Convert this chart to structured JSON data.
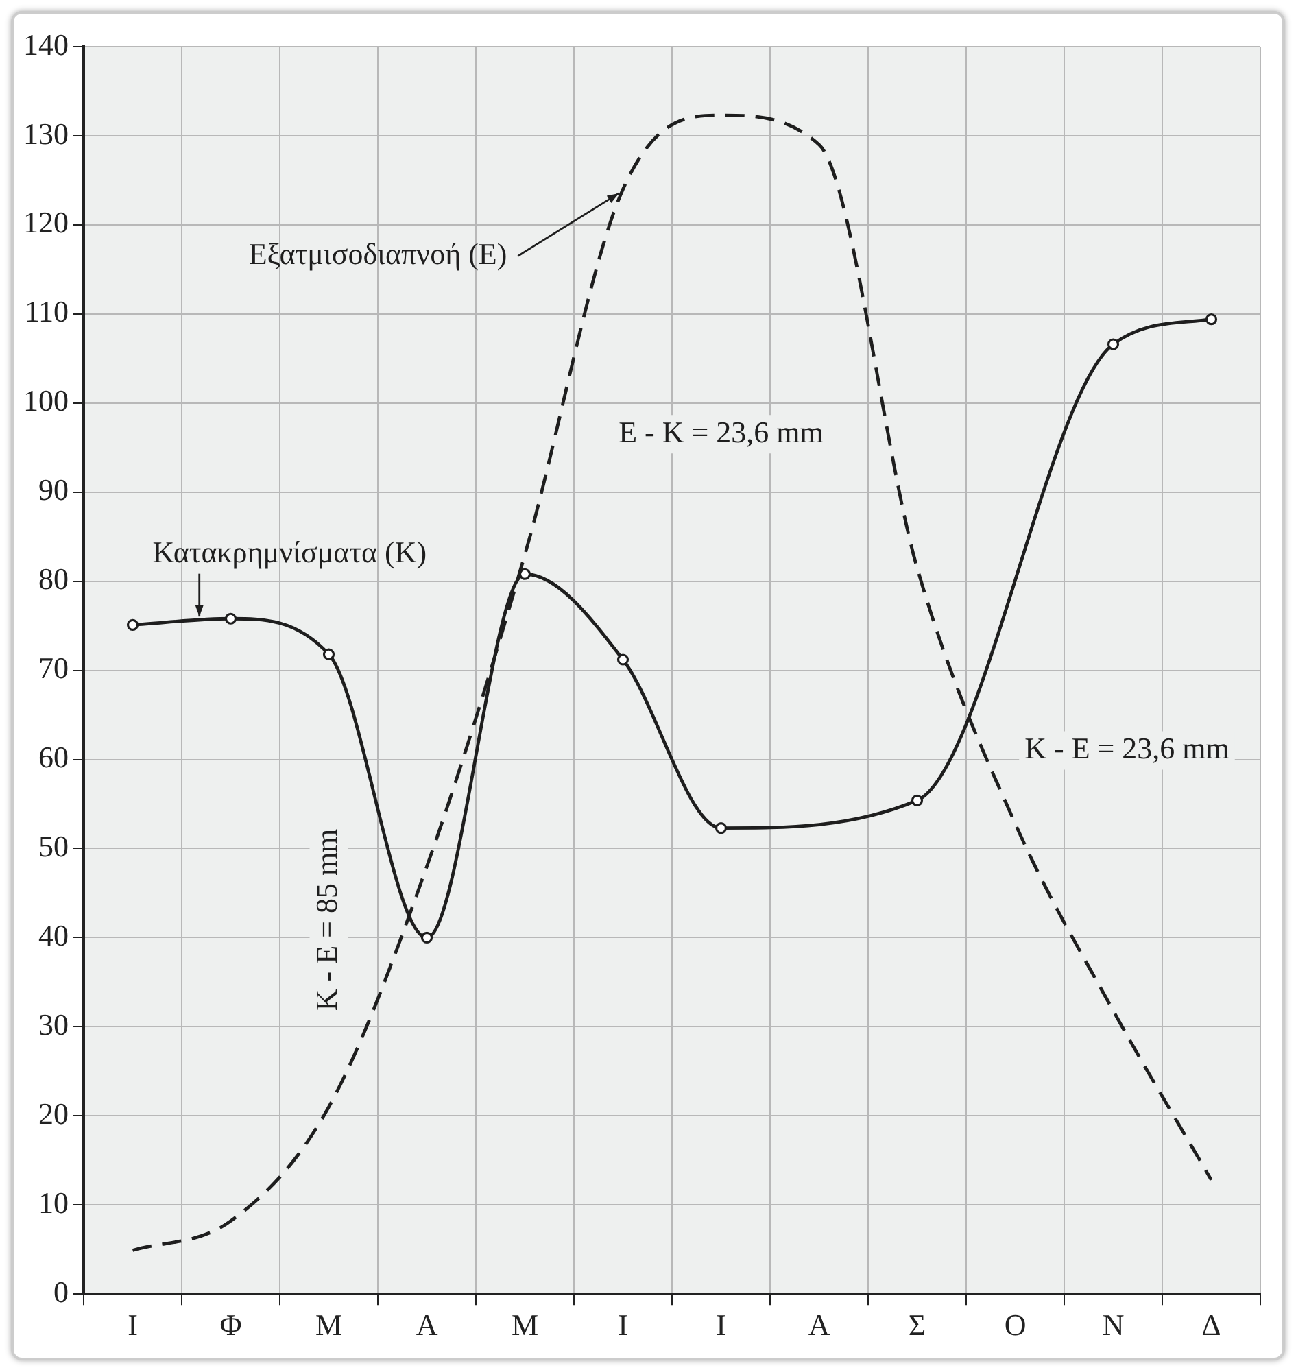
{
  "chart_data": {
    "type": "line",
    "categories": [
      "Ι",
      "Φ",
      "Μ",
      "Α",
      "Μ",
      "Ι",
      "Ι",
      "Α",
      "Σ",
      "Ο",
      "Ν",
      "Δ"
    ],
    "series": [
      {
        "name": "Κατακρημνίσματα (K)",
        "color": "#1e1e1e",
        "line_style": "solid",
        "marker": "circle",
        "values": [
          75.1,
          75.8,
          71.8,
          40.0,
          80.8,
          71.2,
          52.3,
          null,
          55.4,
          null,
          106.6,
          109.4
        ]
      },
      {
        "name": "Εξατμισοδιαπνοή (E)",
        "color": "#1e1e1e",
        "line_style": "dashed",
        "marker": "none",
        "values": [
          4.9,
          8.2,
          21,
          48,
          83,
          124,
          132.3,
          129,
          81.5,
          52.8,
          31.8,
          12.8
        ]
      }
    ],
    "ylim": [
      0,
      140
    ],
    "yticks": [
      0,
      10,
      20,
      30,
      40,
      50,
      60,
      70,
      80,
      90,
      100,
      110,
      120,
      130,
      140
    ],
    "grid": true,
    "legend": false,
    "annotations": [
      "K - E = 85 mm",
      "E - K = 23,6 mm",
      "K - E = 23,6 mm"
    ]
  }
}
